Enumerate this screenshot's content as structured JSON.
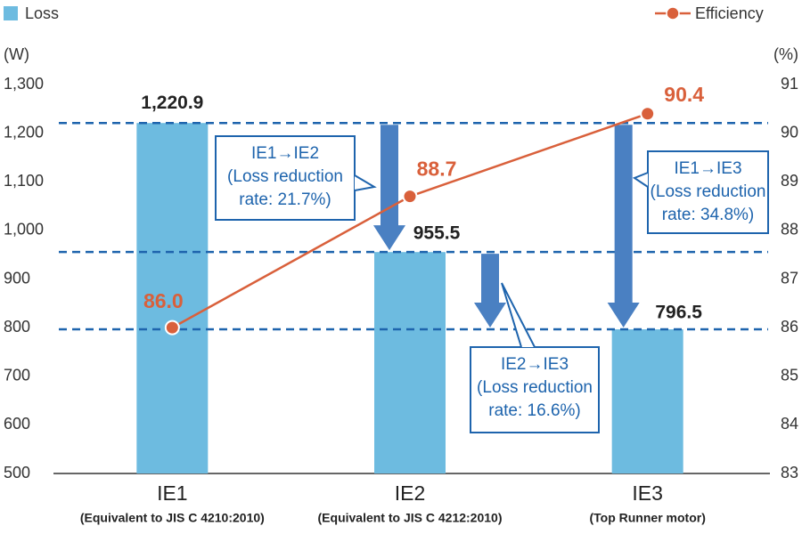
{
  "chart_data": {
    "type": "bar",
    "categories": [
      "IE1",
      "IE2",
      "IE3"
    ],
    "category_sublabels": [
      "(Equivalent to JIS C 4210:2010)",
      "(Equivalent to JIS C 4212:2010)",
      "(Top Runner motor)"
    ],
    "y_label": "(W)",
    "y2_label": "(%)",
    "series": [
      {
        "name": "Loss",
        "color": "#6dbbe0",
        "values": [
          1220.9,
          955.5,
          796.5
        ],
        "value_labels": [
          "1,220.9",
          "955.5",
          "796.5"
        ]
      },
      {
        "name": "Efficiency",
        "color": "#d9603b",
        "type": "line",
        "axis": "y2",
        "values": [
          86.0,
          88.7,
          90.4
        ],
        "value_labels": [
          "86.0",
          "88.7",
          "90.4"
        ]
      }
    ],
    "ylim": [
      500,
      1300
    ],
    "yticks": [
      500,
      600,
      700,
      800,
      900,
      {
        "value": 1000,
        "label": "1,000"
      },
      {
        "value": 1100,
        "label": "1,100"
      },
      {
        "value": 1200,
        "label": "1,200"
      },
      {
        "value": 1300,
        "label": "1,300"
      }
    ],
    "y2lim": [
      83,
      91
    ],
    "y2ticks": [
      83,
      84,
      85,
      86,
      87,
      88,
      89,
      90,
      91
    ],
    "annotations": [
      {
        "lines": [
          "IE1→IE2",
          "(Loss reduction",
          "rate: 21.7%)"
        ]
      },
      {
        "lines": [
          "IE2→IE3",
          "(Loss reduction",
          "rate: 16.6%)"
        ]
      },
      {
        "lines": [
          "IE1→IE3",
          "(Loss reduction",
          "rate: 34.8%)"
        ]
      }
    ]
  }
}
